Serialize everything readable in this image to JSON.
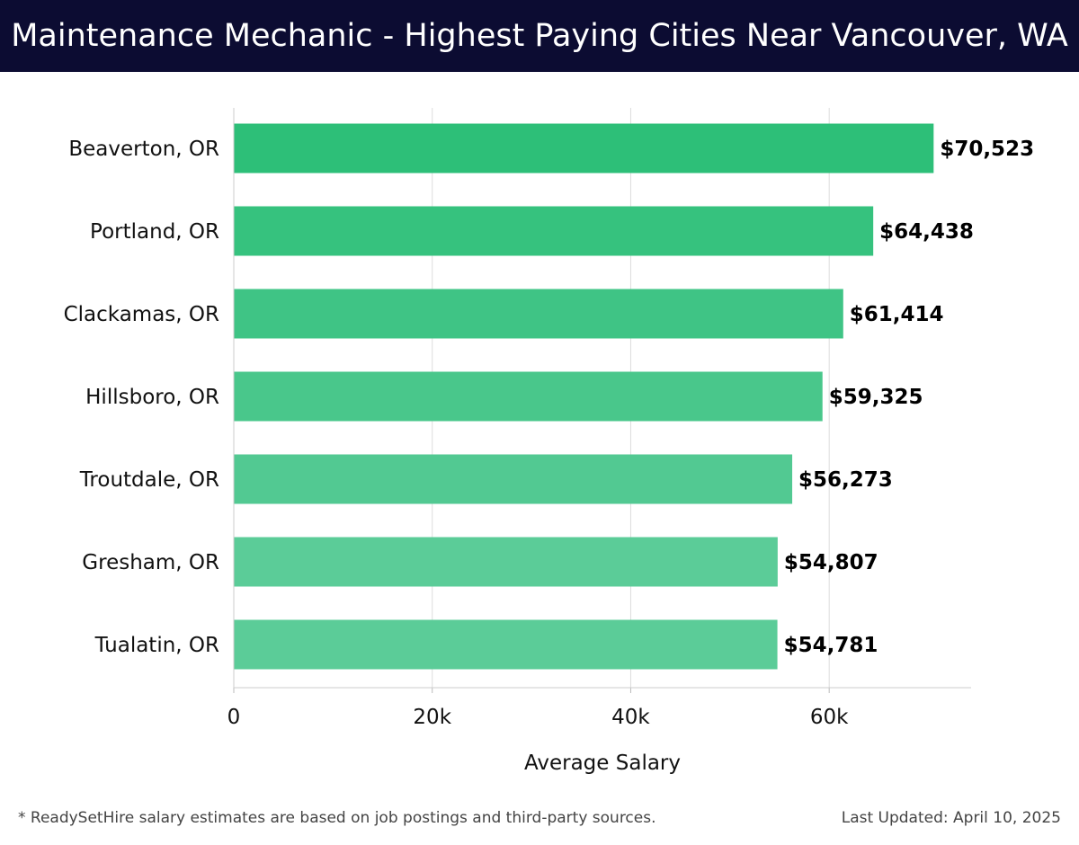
{
  "header": {
    "title": "Maintenance Mechanic - Highest Paying Cities Near Vancouver, WA"
  },
  "footer": {
    "note": "* ReadySetHire salary estimates are based on job postings and third-party sources.",
    "updated": "Last Updated: April 10, 2025"
  },
  "colors": {
    "header_bg": "#0c0c32",
    "bar_start": "#2dbf78",
    "bar_end": "#5bcc98",
    "grid": "#dddddd"
  },
  "chart_data": {
    "type": "bar",
    "orientation": "horizontal",
    "categories": [
      "Beaverton, OR",
      "Portland, OR",
      "Clackamas, OR",
      "Hillsboro, OR",
      "Troutdale, OR",
      "Gresham, OR",
      "Tualatin, OR"
    ],
    "values": [
      70523,
      64438,
      61414,
      59325,
      56273,
      54807,
      54781
    ],
    "value_labels": [
      "$70,523",
      "$64,438",
      "$61,414",
      "$59,325",
      "$56,273",
      "$54,807",
      "$54,781"
    ],
    "xlabel": "Average Salary",
    "ylabel": "",
    "xlim": [
      0,
      74300
    ],
    "xticks": [
      0,
      20000,
      40000,
      60000
    ],
    "xtick_labels": [
      "0",
      "20k",
      "40k",
      "60k"
    ],
    "grid": true,
    "legend": false
  }
}
